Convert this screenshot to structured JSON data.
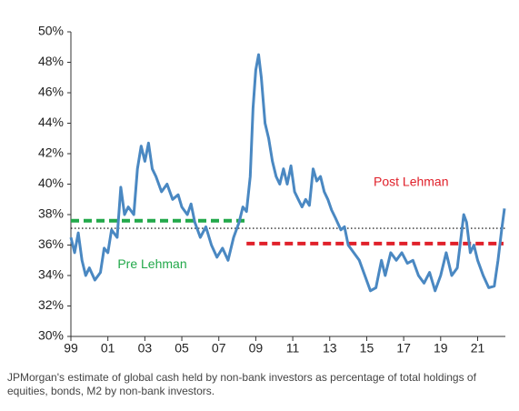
{
  "chart_data": {
    "type": "line",
    "caption": "JPMorgan's estimate of global cash held by non-bank investors as percentage of total holdings of equities, bonds, M2 by non-bank investors.",
    "xlim": [
      1999,
      2022.5
    ],
    "xticks": [
      {
        "value": 1999,
        "label": "99"
      },
      {
        "value": 2001,
        "label": "01"
      },
      {
        "value": 2003,
        "label": "03"
      },
      {
        "value": 2005,
        "label": "05"
      },
      {
        "value": 2007,
        "label": "07"
      },
      {
        "value": 2009,
        "label": "09"
      },
      {
        "value": 2011,
        "label": "11"
      },
      {
        "value": 2013,
        "label": "13"
      },
      {
        "value": 2015,
        "label": "15"
      },
      {
        "value": 2017,
        "label": "17"
      },
      {
        "value": 2019,
        "label": "19"
      },
      {
        "value": 2021,
        "label": "21"
      }
    ],
    "ylim": [
      30,
      50
    ],
    "yticks": [
      {
        "value": 30,
        "label": "30%"
      },
      {
        "value": 32,
        "label": "32%"
      },
      {
        "value": 34,
        "label": "34%"
      },
      {
        "value": 36,
        "label": "36%"
      },
      {
        "value": 38,
        "label": "38%"
      },
      {
        "value": 40,
        "label": "40%"
      },
      {
        "value": 42,
        "label": "42%"
      },
      {
        "value": 44,
        "label": "44%"
      },
      {
        "value": 46,
        "label": "46%"
      },
      {
        "value": 48,
        "label": "48%"
      },
      {
        "value": 50,
        "label": "50%"
      }
    ],
    "series": [
      {
        "color": "#4a88c2",
        "x": [
          1999.0,
          1999.2,
          1999.4,
          1999.6,
          1999.8,
          2000.0,
          2000.3,
          2000.6,
          2000.8,
          2001.0,
          2001.2,
          2001.5,
          2001.7,
          2001.9,
          2002.1,
          2002.4,
          2002.6,
          2002.8,
          2003.0,
          2003.2,
          2003.4,
          2003.6,
          2003.9,
          2004.2,
          2004.5,
          2004.8,
          2005.0,
          2005.3,
          2005.5,
          2005.7,
          2006.0,
          2006.3,
          2006.6,
          2006.9,
          2007.2,
          2007.5,
          2007.8,
          2008.1,
          2008.3,
          2008.5,
          2008.7,
          2008.85,
          2009.0,
          2009.15,
          2009.3,
          2009.5,
          2009.7,
          2009.9,
          2010.1,
          2010.3,
          2010.5,
          2010.7,
          2010.9,
          2011.1,
          2011.3,
          2011.5,
          2011.7,
          2011.9,
          2012.1,
          2012.3,
          2012.5,
          2012.7,
          2012.9,
          2013.1,
          2013.3,
          2013.6,
          2013.8,
          2014.0,
          2014.3,
          2014.6,
          2014.9,
          2015.2,
          2015.5,
          2015.8,
          2016.0,
          2016.3,
          2016.6,
          2016.9,
          2017.2,
          2017.5,
          2017.8,
          2018.1,
          2018.4,
          2018.7,
          2019.0,
          2019.3,
          2019.6,
          2019.9,
          2020.1,
          2020.25,
          2020.4,
          2020.6,
          2020.8,
          2021.0,
          2021.3,
          2021.6,
          2021.9,
          2022.1,
          2022.3,
          2022.45
        ],
        "values": [
          36.5,
          35.5,
          36.8,
          35.0,
          34.0,
          34.5,
          33.7,
          34.2,
          35.8,
          35.5,
          37.0,
          36.5,
          39.8,
          38.0,
          38.5,
          38.0,
          41.0,
          42.5,
          41.5,
          42.7,
          41.0,
          40.5,
          39.5,
          40.0,
          39.0,
          39.3,
          38.5,
          38.0,
          38.7,
          37.5,
          36.5,
          37.2,
          36.0,
          35.2,
          35.8,
          35.0,
          36.5,
          37.5,
          38.5,
          38.2,
          40.5,
          45.0,
          47.5,
          48.5,
          47.0,
          44.0,
          43.0,
          41.5,
          40.5,
          40.0,
          41.0,
          40.0,
          41.2,
          39.5,
          39.0,
          38.5,
          39.0,
          38.6,
          41.0,
          40.2,
          40.5,
          39.5,
          39.0,
          38.3,
          37.8,
          37.0,
          37.2,
          36.0,
          35.5,
          35.0,
          34.0,
          33.0,
          33.2,
          35.0,
          34.0,
          35.5,
          35.0,
          35.5,
          34.8,
          35.0,
          34.0,
          33.5,
          34.2,
          33.0,
          34.0,
          35.5,
          34.0,
          34.5,
          36.5,
          38.0,
          37.5,
          35.5,
          36.0,
          35.0,
          34.0,
          33.2,
          33.3,
          35.0,
          37.0,
          38.4
        ]
      }
    ],
    "reference_lines": [
      {
        "value": 37.1,
        "x": [
          1999,
          2022.5
        ],
        "color": "#000000",
        "style": "dotted"
      },
      {
        "name": "Pre Lehman",
        "value": 37.6,
        "x": [
          1999,
          2008.5
        ],
        "color": "#22a84a",
        "style": "dashed",
        "label_at": [
          2003.4,
          34.7
        ]
      },
      {
        "name": "Post Lehman",
        "value": 36.1,
        "x": [
          2008.5,
          2022.4
        ],
        "color": "#e0202a",
        "style": "dashed",
        "label_at": [
          2017.4,
          40.1
        ]
      }
    ]
  }
}
